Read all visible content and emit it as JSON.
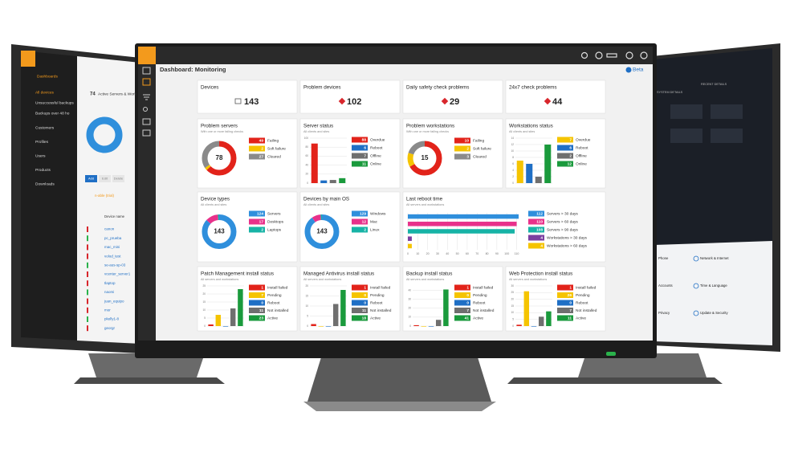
{
  "dashboard": {
    "title": "Dashboard: Monitoring",
    "badge": "Beta",
    "cards": [
      {
        "type": "stat",
        "title": "Devices",
        "value": 143
      },
      {
        "type": "stat",
        "title": "Problem devices",
        "value": 102
      },
      {
        "type": "stat",
        "title": "Daily safety check problems",
        "value": 29
      },
      {
        "type": "stat",
        "title": "24x7 check problems",
        "value": 44
      },
      {
        "type": "donut",
        "title": "Problem servers",
        "subtitle": "With one or more failing checks",
        "center": 78,
        "items": [
          {
            "value": 49,
            "label": "Failing",
            "color": "#e2231a"
          },
          {
            "value": 2,
            "label": "Soft failure",
            "color": "#f5c400"
          },
          {
            "value": 27,
            "label": "Cleared",
            "color": "#8a8a8a"
          }
        ]
      },
      {
        "type": "bars",
        "title": "Server status",
        "subtitle": "All clients and sites",
        "ylim": [
          0,
          100
        ],
        "yticks": [
          0,
          20,
          40,
          60,
          80,
          100
        ],
        "items": [
          {
            "value": 88,
            "label": "Overdue",
            "color": "#e2231a"
          },
          {
            "value": 6,
            "label": "Reboot",
            "color": "#1f6fc5"
          },
          {
            "value": 7,
            "label": "Offline",
            "color": "#6f6f6f"
          },
          {
            "value": 11,
            "label": "Online",
            "color": "#1a9a3c"
          }
        ]
      },
      {
        "type": "donut",
        "title": "Problem workstations",
        "subtitle": "With one or more failing checks",
        "center": 15,
        "items": [
          {
            "value": 10,
            "label": "Failing",
            "color": "#e2231a"
          },
          {
            "value": 2,
            "label": "Soft failure",
            "color": "#f5c400"
          },
          {
            "value": 3,
            "label": "Cleared",
            "color": "#8a8a8a"
          }
        ]
      },
      {
        "type": "bars",
        "title": "Workstations status",
        "subtitle": "All clients and sites",
        "ylim": [
          0,
          14
        ],
        "yticks": [
          0,
          2,
          4,
          6,
          8,
          10,
          12,
          14
        ],
        "items": [
          {
            "value": 7,
            "label": "Overdue",
            "color": "#f5c400"
          },
          {
            "value": 6,
            "label": "Reboot",
            "color": "#1f6fc5"
          },
          {
            "value": 2,
            "label": "Offline",
            "color": "#6f6f6f"
          },
          {
            "value": 12,
            "label": "Online",
            "color": "#1a9a3c"
          }
        ]
      },
      {
        "type": "donut",
        "title": "Device types",
        "subtitle": "All clients and sites",
        "center": 143,
        "items": [
          {
            "value": 124,
            "label": "Servers",
            "color": "#2f8fdc"
          },
          {
            "value": 17,
            "label": "Desktops",
            "color": "#e8318a"
          },
          {
            "value": 2,
            "label": "Laptops",
            "color": "#17b3a6"
          }
        ]
      },
      {
        "type": "donut",
        "title": "Devices by main OS",
        "subtitle": "All clients and sites",
        "center": 143,
        "items": [
          {
            "value": 129,
            "label": "Windows",
            "color": "#2f8fdc"
          },
          {
            "value": 12,
            "label": "Mac",
            "color": "#e8318a"
          },
          {
            "value": 2,
            "label": "Linux",
            "color": "#17b3a6"
          }
        ]
      },
      {
        "type": "hbars",
        "title": "Last reboot time",
        "subtitle": "All servers and workstations",
        "xlim": [
          0,
          112
        ],
        "xticks": [
          0,
          10,
          20,
          30,
          40,
          50,
          60,
          70,
          80,
          90,
          100,
          110
        ],
        "items": [
          {
            "value": 112,
            "label": "Servers > 30 days",
            "color": "#2f8fdc"
          },
          {
            "value": 110,
            "label": "Servers > 60 days",
            "color": "#e8318a"
          },
          {
            "value": 108,
            "label": "Servers > 90 days",
            "color": "#17b3a6"
          },
          {
            "value": 4,
            "label": "Workstations > 30 days",
            "color": "#7b3fa0"
          },
          {
            "value": 4,
            "label": "Workstations > 60 days",
            "color": "#f5c400"
          }
        ]
      },
      {
        "type": "bars",
        "title": "Patch Management install status",
        "subtitle": "All servers and workstations",
        "ylim": [
          0,
          25
        ],
        "yticks": [
          0,
          5,
          10,
          15,
          20,
          25
        ],
        "items": [
          {
            "value": 1,
            "label": "Install failed",
            "color": "#e2231a"
          },
          {
            "value": 7,
            "label": "Pending",
            "color": "#f5c400"
          },
          {
            "value": 0,
            "label": "Reboot",
            "color": "#1f6fc5"
          },
          {
            "value": 11,
            "label": "Not installed",
            "color": "#6f6f6f"
          },
          {
            "value": 23,
            "label": "Active",
            "color": "#1a9a3c"
          }
        ]
      },
      {
        "type": "bars",
        "title": "Managed Antivirus install status",
        "subtitle": "All servers and workstations",
        "ylim": [
          0,
          20
        ],
        "yticks": [
          0,
          5,
          10,
          15,
          20
        ],
        "items": [
          {
            "value": 1,
            "label": "Install failed",
            "color": "#e2231a"
          },
          {
            "value": 0,
            "label": "Pending",
            "color": "#f5c400"
          },
          {
            "value": 0,
            "label": "Reboot",
            "color": "#1f6fc5"
          },
          {
            "value": 11,
            "label": "Not installed",
            "color": "#6f6f6f"
          },
          {
            "value": 18,
            "label": "Active",
            "color": "#1a9a3c"
          }
        ]
      },
      {
        "type": "bars",
        "title": "Backup install status",
        "subtitle": "All servers and workstations",
        "ylim": [
          0,
          45
        ],
        "yticks": [
          0,
          10,
          20,
          30,
          40
        ],
        "items": [
          {
            "value": 1,
            "label": "Install failed",
            "color": "#e2231a"
          },
          {
            "value": 0,
            "label": "Pending",
            "color": "#f5c400"
          },
          {
            "value": 0,
            "label": "Reboot",
            "color": "#1f6fc5"
          },
          {
            "value": 7,
            "label": "Not installed",
            "color": "#6f6f6f"
          },
          {
            "value": 41,
            "label": "Active",
            "color": "#1a9a3c"
          }
        ]
      },
      {
        "type": "bars",
        "title": "Web Protection install status",
        "subtitle": "All servers and workstations",
        "ylim": [
          0,
          30
        ],
        "yticks": [
          0,
          5,
          10,
          15,
          20,
          25,
          30
        ],
        "items": [
          {
            "value": 1,
            "label": "Install failed",
            "color": "#e2231a"
          },
          {
            "value": 26,
            "label": "Pending",
            "color": "#f5c400"
          },
          {
            "value": 0,
            "label": "Reboot",
            "color": "#1f6fc5"
          },
          {
            "value": 7,
            "label": "Not installed",
            "color": "#6f6f6f"
          },
          {
            "value": 11,
            "label": "Active",
            "color": "#1a9a3c"
          }
        ]
      }
    ]
  },
  "left_screen": {
    "nav_title": "Dashboards",
    "nav_items": [
      "All devices",
      "Unsuccessful backups",
      "Backups over 48 ho"
    ],
    "menu": [
      "Customers",
      "Profiles",
      "Users",
      "Products",
      "Downloads"
    ],
    "count": 74,
    "heading": "Active Servers & Work",
    "buttons": [
      "Add",
      "Edit",
      "Delete"
    ],
    "customer": "n-able (trial)",
    "column": "Device name",
    "devices": [
      "canon",
      "pc_prueba",
      "mac_mini",
      "volod_test",
      "se-aus-sp-03",
      "vcenter_server1",
      "tlaptop",
      "naomi",
      "juan_equipo",
      "mor",
      "pkelly1-8",
      "georgr"
    ]
  },
  "right_screen": {
    "tabs": [
      "SYSTEM DETAILS",
      "RECENT DETAILS"
    ],
    "settings": [
      "Phone",
      "Network & Internet",
      "Accounts",
      "Time & Language",
      "Privacy",
      "Update & Security"
    ]
  }
}
